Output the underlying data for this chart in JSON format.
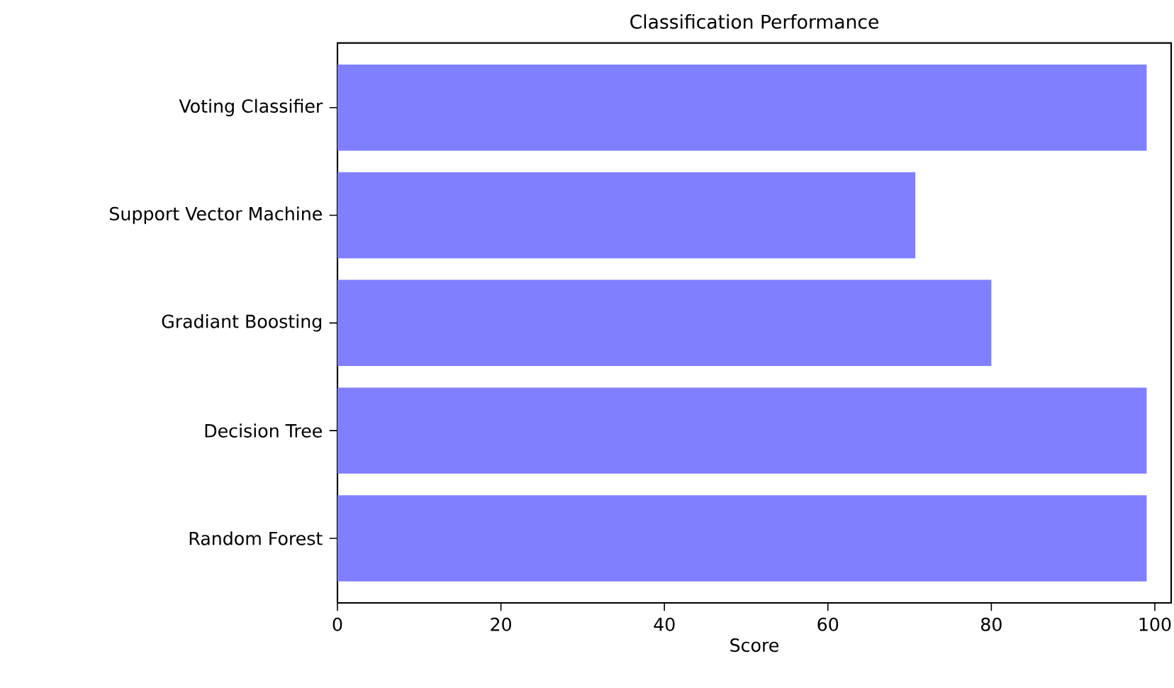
{
  "chart_data": {
    "type": "bar",
    "orientation": "horizontal",
    "title": "Classification Performance",
    "xlabel": "Score",
    "categories": [
      "Voting Classifier",
      "Support Vector Machine",
      "Gradiant Boosting",
      "Decision Tree",
      "Random Forest"
    ],
    "values": [
      99,
      70.7,
      80,
      99,
      99
    ],
    "color": "#8080ff",
    "xlim": [
      0,
      102
    ],
    "xticks": [
      0,
      20,
      40,
      60,
      80,
      100
    ]
  }
}
